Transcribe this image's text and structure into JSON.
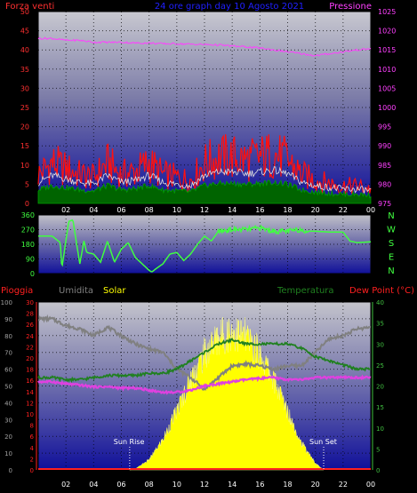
{
  "header": {
    "wind_label": "Forza venti",
    "title": "24 ore graph day 10 Agosto 2021",
    "pressure_label": "Pressione"
  },
  "footer_labels": {
    "rain": "Pioggia",
    "humidity": "Umidita",
    "solar": "Solar",
    "temperature": "Temperatura",
    "dewpoint": "Dew Point (°C)"
  },
  "direction_letters": [
    "N",
    "W",
    "S",
    "E",
    "N"
  ],
  "annotations": {
    "sun_rise": "Sun Rise",
    "sun_set": "Sun Set"
  },
  "colors": {
    "wind_axis": "#ff3030",
    "pressure": "#ff40ff",
    "direction": "#40ff40",
    "rain": "#ff2020",
    "humidity": "#808080",
    "solar": "#ffff00",
    "temperature": "#208020",
    "dewpoint": "#e040e0",
    "axis_left_green": "#40ff40",
    "title": "#2020ff"
  },
  "chart_data": [
    {
      "type": "line",
      "title": "24 ore graph day 10 Agosto 2021",
      "x_ticks": [
        "02",
        "04",
        "06",
        "08",
        "10",
        "12",
        "14",
        "16",
        "18",
        "20",
        "22",
        "00"
      ],
      "ylabel_left": "Forza venti",
      "ylabel_right": "Pressione",
      "left_ticks": [
        0,
        5,
        10,
        15,
        20,
        25,
        30,
        35,
        40,
        45,
        50
      ],
      "right_ticks": [
        975,
        980,
        985,
        990,
        995,
        1000,
        1005,
        1010,
        1015,
        1020,
        1025
      ],
      "ylim_left": [
        0,
        50
      ],
      "ylim_right": [
        975,
        1025
      ],
      "series": [
        {
          "name": "Pressione",
          "axis": "right",
          "x": [
            0,
            1,
            2,
            3,
            4,
            5,
            6,
            7,
            8,
            9,
            10,
            11,
            12,
            13,
            14,
            15,
            16,
            17,
            18,
            19,
            20,
            21,
            22,
            23,
            24
          ],
          "values": [
            1018,
            1018,
            1017.5,
            1017.5,
            1017,
            1017,
            1017,
            1016.8,
            1016.8,
            1016.6,
            1016.6,
            1016.5,
            1016.4,
            1016.3,
            1016,
            1015.8,
            1015.5,
            1015,
            1014.5,
            1014,
            1013.5,
            1014,
            1014.5,
            1015,
            1015.3
          ]
        }
      ],
      "wind_gust_peak": {
        "x": [
          0,
          1,
          2,
          3,
          4,
          5,
          6,
          7,
          8,
          9,
          10,
          11,
          12,
          13,
          14,
          15,
          16,
          17,
          18,
          19,
          20,
          21,
          22,
          23,
          24
        ],
        "values": [
          10,
          14,
          12,
          10,
          9,
          14,
          10,
          11,
          14,
          10,
          9,
          8,
          14,
          16,
          16,
          15,
          16,
          17,
          15,
          10,
          8,
          7,
          6,
          6,
          5
        ]
      }
    },
    {
      "type": "line",
      "x_ticks": [
        "02",
        "04",
        "06",
        "08",
        "10",
        "12",
        "14",
        "16",
        "18",
        "20",
        "22",
        "00"
      ],
      "ylabel_right": "N W S E N",
      "left_ticks": [
        0,
        90,
        180,
        270,
        360
      ],
      "ylim": [
        0,
        360
      ],
      "series": [
        {
          "name": "Direzione",
          "x": [
            0,
            1,
            1.6,
            1.7,
            2.2,
            2.5,
            3,
            3.3,
            3.5,
            4,
            4.5,
            5,
            5.5,
            6,
            6.5,
            7,
            7.5,
            8,
            8.2,
            8.5,
            9,
            9.5,
            10,
            10.5,
            11,
            11.5,
            12,
            12.5,
            13,
            14,
            15,
            16,
            17,
            18,
            19,
            19.5,
            20,
            21,
            22,
            22.5,
            23,
            24
          ],
          "values": [
            230,
            230,
            190,
            30,
            320,
            330,
            60,
            200,
            130,
            120,
            70,
            200,
            70,
            150,
            190,
            100,
            60,
            20,
            10,
            30,
            60,
            120,
            130,
            80,
            120,
            180,
            230,
            200,
            260,
            270,
            270,
            280,
            260,
            260,
            270,
            260,
            260,
            255,
            255,
            200,
            190,
            195
          ]
        }
      ]
    },
    {
      "type": "area",
      "x_ticks": [
        "02",
        "04",
        "06",
        "08",
        "10",
        "12",
        "14",
        "16",
        "18",
        "20",
        "22",
        "00"
      ],
      "left_ticks": [
        0,
        10,
        20,
        30,
        40,
        50,
        60,
        70,
        80,
        90,
        100
      ],
      "rain_ticks": [
        0,
        2,
        4,
        6,
        8,
        10,
        12,
        14,
        16,
        18,
        20,
        22,
        24,
        26,
        28,
        30
      ],
      "right_ticks": [
        0,
        5,
        10,
        15,
        20,
        25,
        30,
        35,
        40
      ],
      "ylim_humidity": [
        0,
        100
      ],
      "ylim_temperature": [
        0,
        40
      ],
      "series": [
        {
          "name": "Umidita",
          "x": [
            0,
            1,
            2,
            3,
            4,
            5,
            6,
            7,
            8,
            9,
            10,
            11,
            12,
            13,
            14,
            15,
            16,
            17,
            18,
            19,
            20,
            21,
            22,
            23,
            24
          ],
          "values": [
            90,
            90,
            86,
            84,
            80,
            85,
            80,
            75,
            72,
            70,
            60,
            55,
            48,
            55,
            62,
            63,
            62,
            60,
            62,
            62,
            70,
            78,
            80,
            84,
            85
          ]
        },
        {
          "name": "Temperatura",
          "x": [
            0,
            1,
            2,
            3,
            4,
            5,
            6,
            7,
            8,
            9,
            10,
            11,
            12,
            13,
            14,
            15,
            16,
            17,
            18,
            19,
            20,
            21,
            22,
            23,
            24
          ],
          "values": [
            22,
            22,
            21.5,
            21.5,
            22,
            22.5,
            22.5,
            22.5,
            23,
            23,
            24,
            26,
            28,
            30,
            31,
            30,
            30,
            30,
            30,
            29,
            27,
            26,
            25,
            24,
            24
          ]
        },
        {
          "name": "Dew Point",
          "x": [
            0,
            1,
            2,
            3,
            4,
            5,
            6,
            7,
            8,
            9,
            10,
            11,
            12,
            13,
            14,
            15,
            16,
            17,
            18,
            19,
            20,
            21,
            22,
            23,
            24
          ],
          "values": [
            21,
            21,
            20.5,
            20.2,
            19.8,
            19.8,
            19.5,
            19.5,
            19,
            18.5,
            18.5,
            19,
            20,
            20.5,
            21,
            21.5,
            21.8,
            22,
            21.5,
            21.5,
            22,
            22,
            22,
            22,
            22
          ]
        },
        {
          "name": "Solar",
          "x": [
            6.6,
            7,
            8,
            9,
            10,
            11,
            12,
            13,
            14,
            15,
            16,
            17,
            18,
            19,
            20,
            20.6
          ],
          "values": [
            0,
            5,
            60,
            180,
            350,
            540,
            690,
            790,
            820,
            790,
            690,
            540,
            350,
            160,
            40,
            0
          ]
        }
      ],
      "solar_max": 1000,
      "sun_rise_x": 6.6,
      "sun_set_x": 20.6
    }
  ]
}
